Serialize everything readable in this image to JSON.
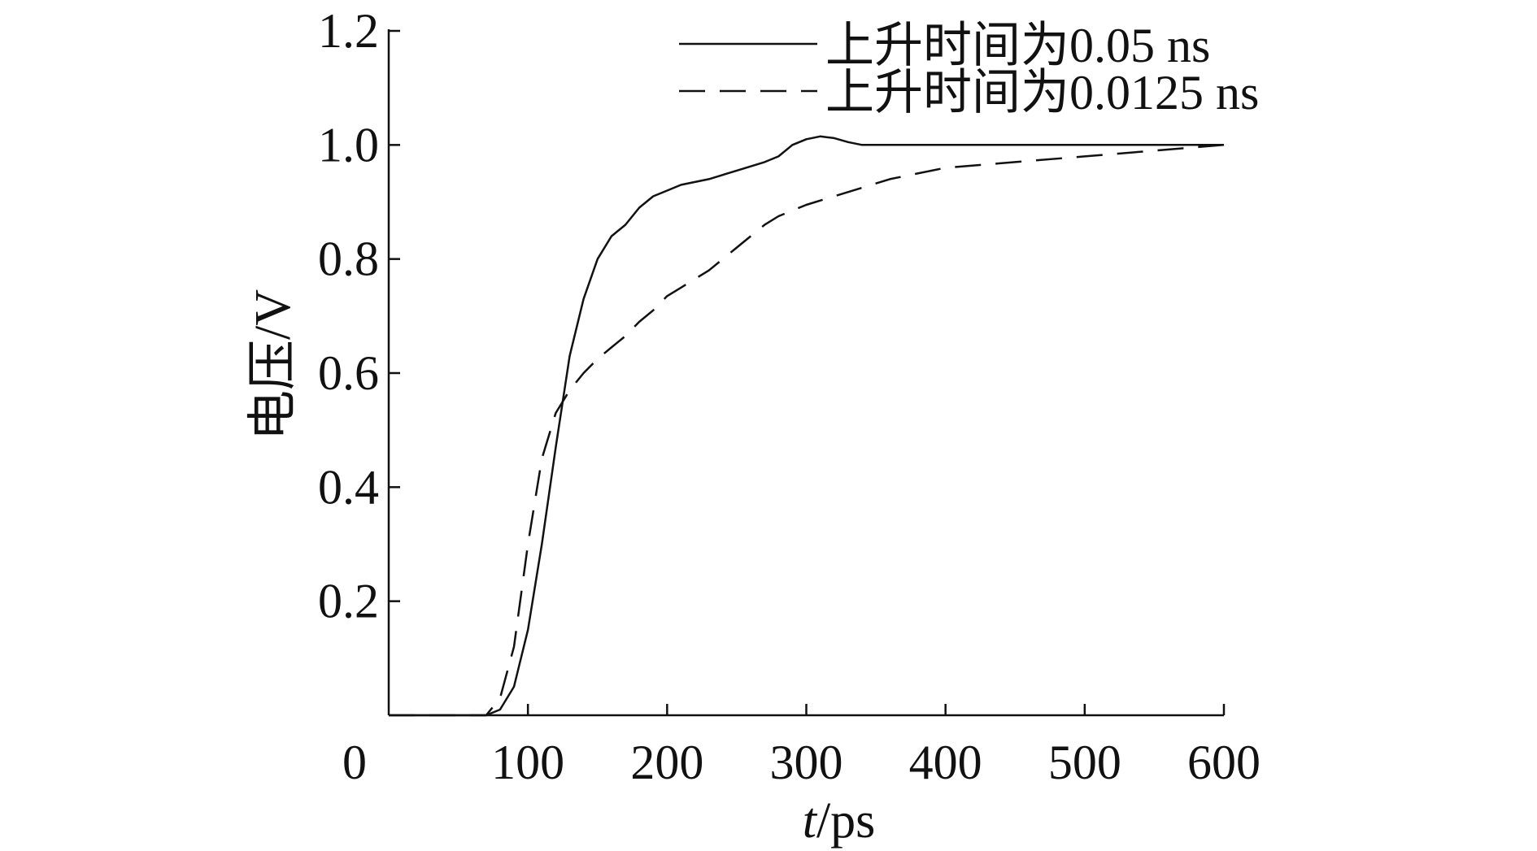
{
  "chart_data": {
    "type": "line",
    "xlabel": "t/ps",
    "xlabel_italic": "t",
    "xlabel_rest": "/ps",
    "ylabel": "电压/V",
    "xlim": [
      0,
      600
    ],
    "ylim": [
      0,
      1.2
    ],
    "x_ticks": [
      0,
      100,
      200,
      300,
      400,
      500,
      600
    ],
    "x_tick_labels": [
      "0",
      "100",
      "200",
      "300",
      "400",
      "500",
      "600"
    ],
    "y_ticks": [
      0.2,
      0.4,
      0.6,
      0.8,
      1.0,
      1.2
    ],
    "y_tick_labels": [
      "0.2",
      "0.4",
      "0.6",
      "0.8",
      "1.0",
      "1.2"
    ],
    "grid": false,
    "legend_position": "top-right",
    "series": [
      {
        "name": "上升时间为0.05 ns",
        "line_style": "solid",
        "color": "#111111",
        "points": [
          [
            0,
            0
          ],
          [
            70,
            0
          ],
          [
            80,
            0.01
          ],
          [
            90,
            0.05
          ],
          [
            100,
            0.15
          ],
          [
            110,
            0.3
          ],
          [
            120,
            0.47
          ],
          [
            130,
            0.63
          ],
          [
            140,
            0.73
          ],
          [
            150,
            0.8
          ],
          [
            160,
            0.84
          ],
          [
            170,
            0.86
          ],
          [
            180,
            0.89
          ],
          [
            190,
            0.91
          ],
          [
            200,
            0.92
          ],
          [
            210,
            0.93
          ],
          [
            220,
            0.935
          ],
          [
            230,
            0.94
          ],
          [
            250,
            0.955
          ],
          [
            270,
            0.97
          ],
          [
            280,
            0.98
          ],
          [
            290,
            1.0
          ],
          [
            300,
            1.01
          ],
          [
            310,
            1.015
          ],
          [
            320,
            1.012
          ],
          [
            330,
            1.005
          ],
          [
            340,
            1.0
          ],
          [
            360,
            1.0
          ],
          [
            400,
            1.0
          ],
          [
            500,
            1.0
          ],
          [
            600,
            1.0
          ]
        ]
      },
      {
        "name": "上升时间为0.0125 ns",
        "line_style": "dashed",
        "color": "#111111",
        "points": [
          [
            0,
            0
          ],
          [
            70,
            0
          ],
          [
            80,
            0.03
          ],
          [
            90,
            0.12
          ],
          [
            100,
            0.3
          ],
          [
            110,
            0.45
          ],
          [
            120,
            0.53
          ],
          [
            130,
            0.57
          ],
          [
            140,
            0.6
          ],
          [
            150,
            0.625
          ],
          [
            160,
            0.645
          ],
          [
            170,
            0.665
          ],
          [
            180,
            0.69
          ],
          [
            190,
            0.71
          ],
          [
            200,
            0.735
          ],
          [
            210,
            0.75
          ],
          [
            220,
            0.765
          ],
          [
            230,
            0.78
          ],
          [
            240,
            0.8
          ],
          [
            250,
            0.82
          ],
          [
            260,
            0.84
          ],
          [
            270,
            0.86
          ],
          [
            280,
            0.875
          ],
          [
            300,
            0.895
          ],
          [
            320,
            0.91
          ],
          [
            340,
            0.925
          ],
          [
            360,
            0.94
          ],
          [
            380,
            0.95
          ],
          [
            400,
            0.96
          ],
          [
            450,
            0.97
          ],
          [
            500,
            0.98
          ],
          [
            550,
            0.99
          ],
          [
            600,
            1.0
          ]
        ]
      }
    ]
  }
}
